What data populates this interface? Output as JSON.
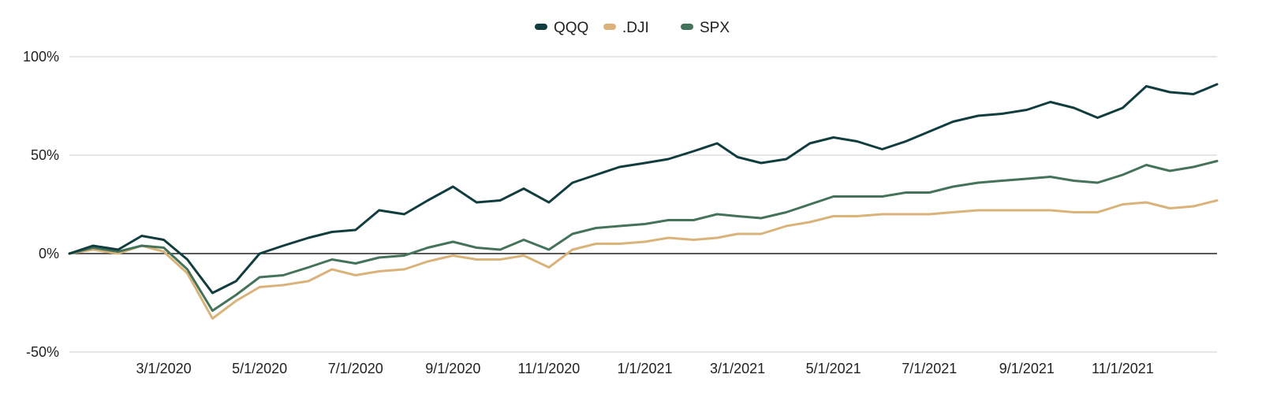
{
  "chart_data": {
    "type": "line",
    "title": "",
    "xlabel": "",
    "ylabel": "",
    "ylim": [
      -50,
      100
    ],
    "yticks": [
      -50,
      0,
      50,
      100
    ],
    "ytick_labels": [
      "-50%",
      "0%",
      "50%",
      "100%"
    ],
    "xlim": [
      "2020-01-01",
      "2021-12-31"
    ],
    "xticks": [
      "2020-03-01",
      "2020-05-01",
      "2020-07-01",
      "2020-09-01",
      "2020-11-01",
      "2021-01-01",
      "2021-03-01",
      "2021-05-01",
      "2021-07-01",
      "2021-09-01",
      "2021-11-01"
    ],
    "xtick_labels": [
      "3/1/2020",
      "5/1/2020",
      "7/1/2020",
      "9/1/2020",
      "11/1/2020",
      "1/1/2021",
      "3/1/2021",
      "5/1/2021",
      "7/1/2021",
      "9/1/2021",
      "11/1/2021"
    ],
    "grid": true,
    "legend_position": "top-center",
    "x": [
      "2020-01-01",
      "2020-01-16",
      "2020-02-01",
      "2020-02-16",
      "2020-03-01",
      "2020-03-16",
      "2020-04-01",
      "2020-04-16",
      "2020-05-01",
      "2020-05-16",
      "2020-06-01",
      "2020-06-16",
      "2020-07-01",
      "2020-07-16",
      "2020-08-01",
      "2020-08-16",
      "2020-09-01",
      "2020-09-16",
      "2020-10-01",
      "2020-10-16",
      "2020-11-01",
      "2020-11-16",
      "2020-12-01",
      "2020-12-16",
      "2021-01-01",
      "2021-01-16",
      "2021-02-01",
      "2021-02-16",
      "2021-03-01",
      "2021-03-16",
      "2021-04-01",
      "2021-04-16",
      "2021-05-01",
      "2021-05-16",
      "2021-06-01",
      "2021-06-16",
      "2021-07-01",
      "2021-07-16",
      "2021-08-01",
      "2021-08-16",
      "2021-09-01",
      "2021-09-16",
      "2021-10-01",
      "2021-10-16",
      "2021-11-01",
      "2021-11-16",
      "2021-12-01",
      "2021-12-16",
      "2021-12-31"
    ],
    "series": [
      {
        "name": "QQQ",
        "color": "#123d3f",
        "values": [
          0,
          4,
          2,
          9,
          7,
          -3,
          -20,
          -14,
          0,
          4,
          8,
          11,
          12,
          22,
          20,
          27,
          34,
          26,
          27,
          33,
          26,
          36,
          40,
          44,
          46,
          48,
          52,
          56,
          49,
          46,
          48,
          56,
          59,
          57,
          53,
          57,
          62,
          67,
          70,
          71,
          73,
          77,
          74,
          69,
          74,
          85,
          82,
          81,
          86
        ]
      },
      {
        "name": ".DJI",
        "color": "#d9b37a",
        "values": [
          0,
          2,
          0,
          4,
          1,
          -10,
          -33,
          -24,
          -17,
          -16,
          -14,
          -8,
          -11,
          -9,
          -8,
          -4,
          -1,
          -3,
          -3,
          -1,
          -7,
          2,
          5,
          5,
          6,
          8,
          7,
          8,
          10,
          10,
          14,
          16,
          19,
          19,
          20,
          20,
          20,
          21,
          22,
          22,
          22,
          22,
          21,
          21,
          25,
          26,
          23,
          24,
          27
        ]
      },
      {
        "name": "SPX",
        "color": "#45735a",
        "values": [
          0,
          3,
          1,
          4,
          3,
          -8,
          -29,
          -21,
          -12,
          -11,
          -7,
          -3,
          -5,
          -2,
          -1,
          3,
          6,
          3,
          2,
          7,
          2,
          10,
          13,
          14,
          15,
          17,
          17,
          20,
          19,
          18,
          21,
          25,
          29,
          29,
          29,
          31,
          31,
          34,
          36,
          37,
          38,
          39,
          37,
          36,
          40,
          45,
          42,
          44,
          47
        ]
      }
    ]
  }
}
